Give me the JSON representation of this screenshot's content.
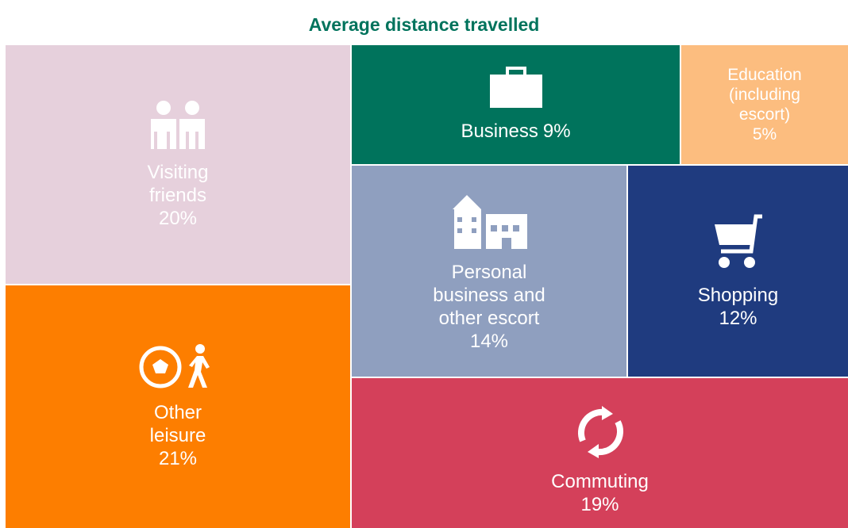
{
  "chart_data": {
    "type": "treemap",
    "title": "Average distance travelled",
    "categories": [
      "Visiting friends",
      "Other leisure",
      "Business",
      "Education (including escort)",
      "Personal business and other escort",
      "Shopping",
      "Commuting"
    ],
    "values": [
      20,
      21,
      9,
      5,
      14,
      12,
      19
    ],
    "value_labels": [
      "20%",
      "21%",
      "9%",
      "5%",
      "14%",
      "12%",
      "19%"
    ],
    "colors": [
      "#e6d0dc",
      "#fd7e00",
      "#00735c",
      "#fcbd7f",
      "#8f9fbf",
      "#1f3b7f",
      "#d4405a"
    ]
  }
}
